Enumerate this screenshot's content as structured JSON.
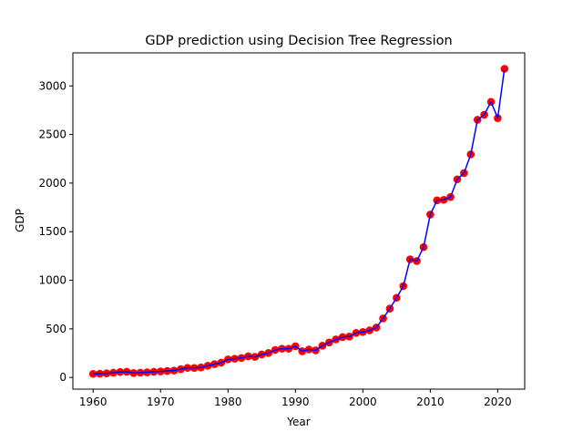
{
  "chart_data": {
    "type": "scatter",
    "title": "GDP prediction using Decision Tree Regression",
    "xlabel": "Year",
    "ylabel": "GDP",
    "xlim": [
      1957,
      2024
    ],
    "ylim": [
      -120,
      3340
    ],
    "xticks": [
      1960,
      1970,
      1980,
      1990,
      2000,
      2010,
      2020
    ],
    "yticks": [
      0,
      500,
      1000,
      1500,
      2000,
      2500,
      3000
    ],
    "grid": false,
    "legend": "none",
    "x": [
      1960,
      1961,
      1962,
      1963,
      1964,
      1965,
      1966,
      1967,
      1968,
      1969,
      1970,
      1971,
      1972,
      1973,
      1974,
      1975,
      1976,
      1977,
      1978,
      1979,
      1980,
      1981,
      1982,
      1983,
      1984,
      1985,
      1986,
      1987,
      1988,
      1989,
      1990,
      1991,
      1992,
      1993,
      1994,
      1995,
      1996,
      1997,
      1998,
      1999,
      2000,
      2001,
      2002,
      2003,
      2004,
      2005,
      2006,
      2007,
      2008,
      2009,
      2010,
      2011,
      2012,
      2013,
      2014,
      2015,
      2016,
      2017,
      2018,
      2019,
      2020,
      2021
    ],
    "series": [
      {
        "kind": "scatter",
        "color": "#ff0000",
        "values": [
          37,
          39,
          42,
          49,
          56,
          59,
          46,
          50,
          53,
          59,
          62,
          67,
          71,
          86,
          99,
          98,
          103,
          121,
          137,
          153,
          186,
          193,
          201,
          218,
          212,
          237,
          252,
          283,
          296,
          296,
          321,
          270,
          288,
          279,
          327,
          360,
          392,
          415,
          421,
          458,
          468,
          485,
          514,
          607,
          709,
          820,
          940,
          1216,
          1198,
          1341,
          1676,
          1823,
          1828,
          1857,
          2039,
          2103,
          2295,
          2651,
          2703,
          2836,
          2668,
          3176
        ]
      },
      {
        "kind": "line",
        "color": "#0000ff",
        "values": [
          37,
          39,
          42,
          49,
          56,
          59,
          46,
          50,
          53,
          59,
          62,
          67,
          71,
          86,
          99,
          98,
          103,
          121,
          137,
          153,
          186,
          193,
          201,
          218,
          212,
          237,
          252,
          283,
          296,
          296,
          321,
          270,
          288,
          279,
          327,
          360,
          392,
          415,
          421,
          458,
          468,
          485,
          514,
          607,
          709,
          820,
          940,
          1216,
          1198,
          1341,
          1676,
          1823,
          1828,
          1857,
          2039,
          2103,
          2295,
          2651,
          2703,
          2836,
          2668,
          3176
        ]
      }
    ]
  }
}
